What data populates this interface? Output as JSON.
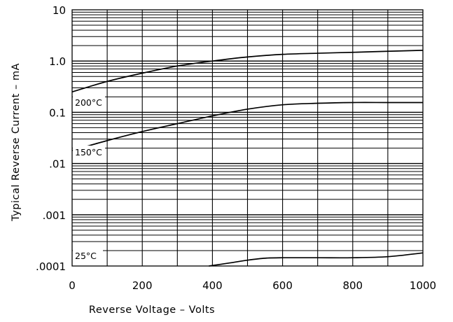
{
  "chart_data": {
    "type": "line",
    "title": "",
    "xlabel": "Reverse Voltage – Volts",
    "ylabel": "Typical Reverse Current – mA",
    "xlim": [
      0,
      1000
    ],
    "ylim": [
      0.0001,
      10
    ],
    "y_scale": "log",
    "grid": true,
    "x_ticks": [
      0,
      200,
      400,
      600,
      800,
      1000
    ],
    "x_tick_labels": [
      "0",
      "200",
      "400",
      "600",
      "800",
      "1000"
    ],
    "y_ticks": [
      0.0001,
      0.001,
      0.01,
      0.1,
      1.0,
      10
    ],
    "y_tick_labels": [
      ".0001",
      ".001",
      ".01",
      "0.1",
      "1.0",
      "10"
    ],
    "series": [
      {
        "name": "200°C",
        "x": [
          0,
          100,
          200,
          300,
          400,
          500,
          600,
          700,
          800,
          900,
          1000
        ],
        "y": [
          0.25,
          0.4,
          0.58,
          0.8,
          1.0,
          1.2,
          1.35,
          1.42,
          1.48,
          1.55,
          1.62
        ]
      },
      {
        "name": "150°C",
        "x": [
          0,
          100,
          200,
          300,
          400,
          500,
          600,
          700,
          800,
          900,
          1000
        ],
        "y": [
          0.018,
          0.028,
          0.042,
          0.06,
          0.085,
          0.115,
          0.14,
          0.15,
          0.155,
          0.155,
          0.155
        ]
      },
      {
        "name": "25°C",
        "x": [
          390,
          450,
          500,
          550,
          600,
          700,
          800,
          900,
          1000
        ],
        "y": [
          0.0001,
          0.000115,
          0.00013,
          0.000142,
          0.000145,
          0.000145,
          0.000145,
          0.000152,
          0.00018
        ]
      }
    ]
  }
}
